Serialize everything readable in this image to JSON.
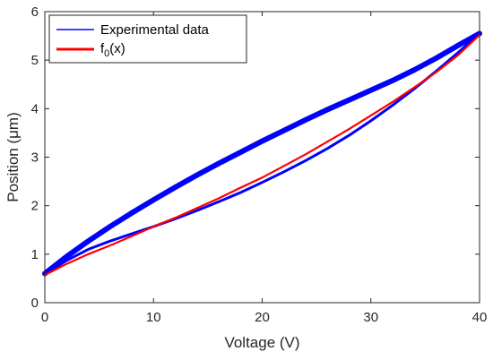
{
  "chart_data": {
    "type": "line",
    "xlabel": "Voltage (V)",
    "ylabel": "Position (μm)",
    "xlim": [
      0,
      40
    ],
    "ylim": [
      0,
      6
    ],
    "xticks": [
      0,
      10,
      20,
      30,
      40
    ],
    "yticks": [
      0,
      1,
      2,
      3,
      4,
      5,
      6
    ],
    "grid": false,
    "legend_position": "top-left",
    "series": [
      {
        "name": "Experimental data",
        "color": "#0000ff",
        "style": "thick-band",
        "x": [
          0,
          2,
          4,
          6,
          8,
          10,
          12,
          14,
          16,
          18,
          20,
          22,
          24,
          26,
          28,
          30,
          32,
          34,
          36,
          38,
          40
        ],
        "y": [
          0.6,
          0.95,
          1.27,
          1.57,
          1.85,
          2.12,
          2.38,
          2.63,
          2.87,
          3.1,
          3.33,
          3.55,
          3.77,
          3.98,
          4.18,
          4.38,
          4.58,
          4.8,
          5.04,
          5.3,
          5.55
        ],
        "x_return": [
          40,
          38,
          36,
          34,
          32,
          30,
          28,
          26,
          24,
          22,
          20,
          18,
          16,
          14,
          12,
          10,
          8,
          6,
          4,
          2,
          0
        ],
        "y_return": [
          5.55,
          5.15,
          4.77,
          4.41,
          4.07,
          3.75,
          3.45,
          3.18,
          2.93,
          2.7,
          2.48,
          2.27,
          2.08,
          1.9,
          1.73,
          1.57,
          1.42,
          1.27,
          1.1,
          0.87,
          0.58
        ]
      },
      {
        "name": "f0(x)",
        "legend_main": "f",
        "legend_sub": "0",
        "legend_tail": "(x)",
        "color": "#ff0000",
        "x": [
          0,
          2,
          4,
          6,
          8,
          10,
          12,
          14,
          16,
          18,
          20,
          22,
          24,
          26,
          28,
          30,
          32,
          34,
          36,
          38,
          40
        ],
        "y": [
          0.57,
          0.8,
          1.0,
          1.18,
          1.37,
          1.57,
          1.75,
          1.95,
          2.15,
          2.37,
          2.58,
          2.82,
          3.06,
          3.32,
          3.58,
          3.86,
          4.14,
          4.44,
          4.75,
          5.1,
          5.52
        ]
      }
    ]
  }
}
